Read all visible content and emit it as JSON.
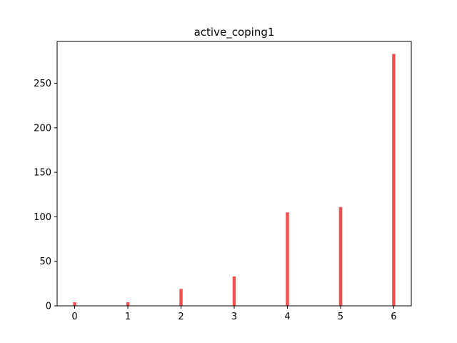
{
  "chart_data": {
    "type": "bar",
    "title": "active_coping1",
    "xlabel": "",
    "ylabel": "",
    "x": [
      0,
      1,
      2,
      3,
      4,
      5,
      6
    ],
    "values": [
      4,
      4,
      19,
      33,
      105,
      111,
      283
    ],
    "xlim": [
      -0.33,
      6.33
    ],
    "ylim": [
      0,
      297
    ],
    "x_ticks": [
      0,
      1,
      2,
      3,
      4,
      5,
      6
    ],
    "y_ticks": [
      0,
      50,
      100,
      150,
      200,
      250
    ],
    "bar_color": "#f05050",
    "grid": false
  }
}
